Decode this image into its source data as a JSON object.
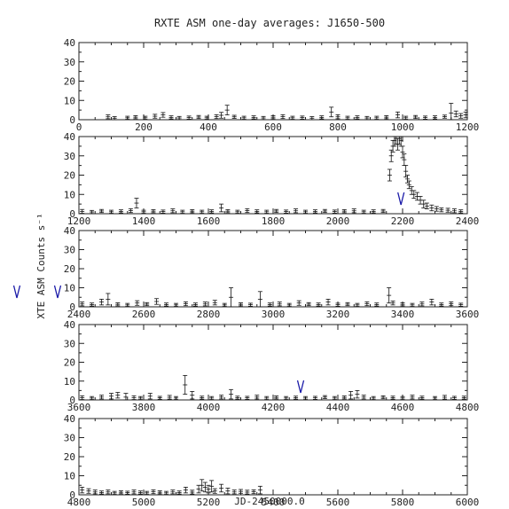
{
  "chart_data": {
    "type": "scatter",
    "title": "RXTE ASM one-day averages: J1650-500",
    "xlabel": "JD-2450000.0",
    "ylabel": "XTE ASM Counts s⁻¹",
    "colors": {
      "points": "#111111",
      "markers": "#1a1aa8"
    },
    "panels": [
      {
        "xlim": [
          0,
          1200
        ],
        "ylim": [
          0,
          40
        ],
        "xticks": [
          0,
          200,
          400,
          600,
          800,
          1000,
          1200
        ],
        "xtick_labels": [
          "0",
          "200",
          "400",
          "600",
          "800",
          "1000",
          "1200"
        ],
        "yticks": [
          0,
          10,
          20,
          30,
          40
        ],
        "ytick_labels": [
          "0",
          "10",
          "20",
          "30",
          "40"
        ],
        "markers": [],
        "points": [
          [
            90,
            1.5,
            1
          ],
          [
            110,
            0.8,
            0.8
          ],
          [
            150,
            1.0,
            0.8
          ],
          [
            175,
            1.3,
            0.8
          ],
          [
            205,
            1.0,
            0.8
          ],
          [
            235,
            1.8,
            1
          ],
          [
            260,
            2.5,
            1.2
          ],
          [
            285,
            1.2,
            0.8
          ],
          [
            310,
            0.9,
            0.8
          ],
          [
            340,
            1.1,
            0.8
          ],
          [
            370,
            1.4,
            0.8
          ],
          [
            395,
            1.0,
            0.8
          ],
          [
            425,
            1.6,
            1
          ],
          [
            440,
            2.3,
            1.5
          ],
          [
            458,
            5.0,
            2.5
          ],
          [
            480,
            1.5,
            0.8
          ],
          [
            510,
            1.0,
            0.8
          ],
          [
            540,
            1.2,
            0.8
          ],
          [
            570,
            0.9,
            0.8
          ],
          [
            600,
            1.3,
            0.8
          ],
          [
            630,
            1.6,
            1
          ],
          [
            660,
            1.0,
            0.8
          ],
          [
            690,
            1.1,
            0.8
          ],
          [
            720,
            0.8,
            0.8
          ],
          [
            750,
            1.2,
            0.8
          ],
          [
            780,
            4.0,
            2.5
          ],
          [
            800,
            1.5,
            1
          ],
          [
            830,
            1.0,
            0.8
          ],
          [
            860,
            1.2,
            0.8
          ],
          [
            890,
            0.9,
            0.8
          ],
          [
            920,
            1.0,
            0.8
          ],
          [
            950,
            1.3,
            0.8
          ],
          [
            985,
            2.5,
            1.5
          ],
          [
            1010,
            1.0,
            0.8
          ],
          [
            1040,
            1.4,
            0.8
          ],
          [
            1070,
            1.1,
            0.8
          ],
          [
            1100,
            1.2,
            0.8
          ],
          [
            1130,
            1.6,
            0.8
          ],
          [
            1150,
            3.5,
            5
          ],
          [
            1165,
            3.0,
            1.5
          ],
          [
            1180,
            2.0,
            1.2
          ],
          [
            1195,
            2.5,
            1.5
          ]
        ]
      },
      {
        "xlim": [
          1200,
          2400
        ],
        "ylim": [
          0,
          40
        ],
        "xticks": [
          1200,
          1400,
          1600,
          1800,
          2000,
          2200,
          2400
        ],
        "xtick_labels": [
          "1200",
          "1400",
          "1600",
          "1800",
          "2000",
          "2200",
          "2400"
        ],
        "yticks": [
          0,
          10,
          20,
          30,
          40
        ],
        "ytick_labels": [
          "0",
          "10",
          "20",
          "30",
          "40"
        ],
        "markers": [
          2195
        ],
        "points": [
          [
            1210,
            1.2,
            1
          ],
          [
            1240,
            0.9,
            0.8
          ],
          [
            1270,
            1.4,
            0.8
          ],
          [
            1300,
            1.0,
            0.8
          ],
          [
            1330,
            1.2,
            0.8
          ],
          [
            1360,
            1.6,
            1
          ],
          [
            1378,
            5.5,
            2.5
          ],
          [
            1400,
            1.0,
            0.8
          ],
          [
            1430,
            1.3,
            0.8
          ],
          [
            1460,
            1.1,
            0.8
          ],
          [
            1490,
            1.5,
            1
          ],
          [
            1520,
            1.0,
            0.8
          ],
          [
            1550,
            1.3,
            0.8
          ],
          [
            1580,
            1.0,
            0.8
          ],
          [
            1610,
            1.2,
            0.8
          ],
          [
            1640,
            3.0,
            2
          ],
          [
            1660,
            1.3,
            0.8
          ],
          [
            1690,
            1.0,
            0.8
          ],
          [
            1720,
            1.6,
            1
          ],
          [
            1750,
            1.2,
            0.8
          ],
          [
            1780,
            1.0,
            0.8
          ],
          [
            1810,
            1.4,
            0.8
          ],
          [
            1840,
            1.1,
            0.8
          ],
          [
            1870,
            1.5,
            1
          ],
          [
            1900,
            1.0,
            0.8
          ],
          [
            1930,
            1.2,
            0.8
          ],
          [
            1960,
            1.4,
            0.8
          ],
          [
            1990,
            1.1,
            0.8
          ],
          [
            2020,
            1.3,
            0.8
          ],
          [
            2050,
            1.5,
            1
          ],
          [
            2080,
            1.0,
            0.8
          ],
          [
            2110,
            1.2,
            0.8
          ],
          [
            2140,
            1.4,
            0.8
          ],
          [
            2160,
            20,
            3
          ],
          [
            2165,
            30,
            3
          ],
          [
            2170,
            35,
            3
          ],
          [
            2175,
            38,
            3
          ],
          [
            2180,
            39,
            3
          ],
          [
            2185,
            36,
            3
          ],
          [
            2190,
            39,
            3
          ],
          [
            2195,
            38,
            3
          ],
          [
            2200,
            32,
            3
          ],
          [
            2205,
            28,
            3
          ],
          [
            2210,
            22,
            3
          ],
          [
            2215,
            18,
            2
          ],
          [
            2220,
            15,
            2
          ],
          [
            2228,
            12,
            2
          ],
          [
            2235,
            10,
            2
          ],
          [
            2245,
            9,
            2
          ],
          [
            2255,
            7,
            2
          ],
          [
            2265,
            5,
            2
          ],
          [
            2275,
            4,
            1.5
          ],
          [
            2290,
            3,
            1.5
          ],
          [
            2305,
            2.5,
            1.2
          ],
          [
            2320,
            2,
            1
          ],
          [
            2340,
            1.8,
            1
          ],
          [
            2360,
            1.5,
            1
          ],
          [
            2380,
            1.2,
            0.8
          ]
        ]
      },
      {
        "xlim": [
          2400,
          3600
        ],
        "ylim": [
          0,
          40
        ],
        "xticks": [
          2400,
          2600,
          2800,
          3000,
          3200,
          3400,
          3600
        ],
        "xtick_labels": [
          "2400",
          "2600",
          "2800",
          "3000",
          "3200",
          "3400",
          "3600"
        ],
        "yticks": [
          0,
          10,
          20,
          30,
          40
        ],
        "ytick_labels": [
          "0",
          "10",
          "20",
          "30",
          "40"
        ],
        "markers": [],
        "points": [
          [
            2410,
            1.5,
            1
          ],
          [
            2440,
            1.2,
            0.8
          ],
          [
            2470,
            2.5,
            1.5
          ],
          [
            2490,
            4.0,
            3
          ],
          [
            2520,
            1.3,
            0.8
          ],
          [
            2550,
            1.0,
            0.8
          ],
          [
            2580,
            2.0,
            1.2
          ],
          [
            2610,
            1.4,
            0.8
          ],
          [
            2640,
            2.8,
            1.5
          ],
          [
            2670,
            1.2,
            0.8
          ],
          [
            2700,
            1.0,
            0.8
          ],
          [
            2730,
            1.6,
            1
          ],
          [
            2760,
            1.2,
            0.8
          ],
          [
            2790,
            1.5,
            1
          ],
          [
            2820,
            2.2,
            1.2
          ],
          [
            2850,
            1.0,
            0.8
          ],
          [
            2870,
            5.0,
            5
          ],
          [
            2900,
            1.3,
            0.8
          ],
          [
            2930,
            1.1,
            0.8
          ],
          [
            2960,
            4.0,
            4
          ],
          [
            2990,
            1.2,
            0.8
          ],
          [
            3020,
            1.5,
            1
          ],
          [
            3050,
            1.0,
            0.8
          ],
          [
            3080,
            2.0,
            1.2
          ],
          [
            3110,
            1.4,
            0.8
          ],
          [
            3140,
            1.2,
            0.8
          ],
          [
            3170,
            2.5,
            1.5
          ],
          [
            3200,
            1.1,
            0.8
          ],
          [
            3230,
            1.4,
            0.8
          ],
          [
            3260,
            1.0,
            0.8
          ],
          [
            3290,
            1.6,
            1
          ],
          [
            3320,
            1.2,
            0.8
          ],
          [
            3358,
            6.0,
            4
          ],
          [
            3370,
            2.0,
            1
          ],
          [
            3400,
            1.3,
            0.8
          ],
          [
            3430,
            1.0,
            0.8
          ],
          [
            3460,
            1.5,
            1
          ],
          [
            3490,
            2.5,
            1.5
          ],
          [
            3520,
            1.2,
            0.8
          ],
          [
            3550,
            1.6,
            1
          ],
          [
            3580,
            1.1,
            0.8
          ]
        ]
      },
      {
        "xlim": [
          3600,
          4800
        ],
        "ylim": [
          0,
          40
        ],
        "xticks": [
          3600,
          3800,
          4000,
          4200,
          4400,
          4600,
          4800
        ],
        "xtick_labels": [
          "3600",
          "3800",
          "4000",
          "4200",
          "4400",
          "4600",
          "4800"
        ],
        "yticks": [
          0,
          10,
          20,
          30,
          40
        ],
        "ytick_labels": [
          "0",
          "10",
          "20",
          "30",
          "40"
        ],
        "markers": [
          4285
        ],
        "points": [
          [
            3610,
            1.2,
            1
          ],
          [
            3640,
            1.0,
            0.8
          ],
          [
            3670,
            1.5,
            1
          ],
          [
            3700,
            2.0,
            1.5
          ],
          [
            3720,
            2.5,
            1.5
          ],
          [
            3745,
            1.5,
            2
          ],
          [
            3770,
            1.2,
            1
          ],
          [
            3790,
            1.0,
            0.8
          ],
          [
            3820,
            2.0,
            1.5
          ],
          [
            3850,
            1.1,
            0.8
          ],
          [
            3880,
            1.4,
            1
          ],
          [
            3900,
            1.0,
            0.8
          ],
          [
            3928,
            8,
            5
          ],
          [
            3950,
            2.5,
            2
          ],
          [
            3980,
            1.2,
            0.8
          ],
          [
            4010,
            1.0,
            0.8
          ],
          [
            4040,
            1.5,
            1
          ],
          [
            4070,
            3,
            2.5
          ],
          [
            4090,
            1.2,
            0.8
          ],
          [
            4120,
            1.1,
            0.8
          ],
          [
            4150,
            1.5,
            1
          ],
          [
            4180,
            1.0,
            0.8
          ],
          [
            4210,
            1.3,
            0.8
          ],
          [
            4240,
            1.0,
            0.8
          ],
          [
            4270,
            1.2,
            0.8
          ],
          [
            4300,
            1.0,
            0.8
          ],
          [
            4330,
            1.1,
            0.8
          ],
          [
            4360,
            1.5,
            0.8
          ],
          [
            4390,
            1.0,
            0.8
          ],
          [
            4420,
            1.3,
            0.8
          ],
          [
            4440,
            2.5,
            2
          ],
          [
            4460,
            3.0,
            2
          ],
          [
            4480,
            1.5,
            1
          ],
          [
            4510,
            1.0,
            0.8
          ],
          [
            4540,
            1.4,
            0.8
          ],
          [
            4570,
            1.2,
            0.8
          ],
          [
            4600,
            1.0,
            0.8
          ],
          [
            4630,
            1.5,
            1
          ],
          [
            4660,
            1.2,
            0.8
          ],
          [
            4700,
            1.0,
            0.8
          ],
          [
            4730,
            1.4,
            1
          ],
          [
            4760,
            1.1,
            0.8
          ],
          [
            4790,
            1.2,
            0.8
          ]
        ]
      },
      {
        "xlim": [
          4800,
          6000
        ],
        "ylim": [
          0,
          40
        ],
        "xticks": [
          4800,
          5000,
          5200,
          5400,
          5600,
          5800,
          6000
        ],
        "xtick_labels": [
          "4800",
          "5000",
          "5200",
          "5400",
          "5600",
          "5800",
          "6000"
        ],
        "yticks": [
          0,
          10,
          20,
          30,
          40
        ],
        "ytick_labels": [
          "0",
          "10",
          "20",
          "30",
          "40"
        ],
        "markers": [],
        "points": [
          [
            4810,
            2.5,
            1.5
          ],
          [
            4830,
            2.0,
            1.2
          ],
          [
            4850,
            1.5,
            1
          ],
          [
            4870,
            1.2,
            0.8
          ],
          [
            4890,
            1.5,
            1
          ],
          [
            4910,
            1.0,
            0.8
          ],
          [
            4930,
            1.3,
            0.8
          ],
          [
            4950,
            1.1,
            0.8
          ],
          [
            4970,
            1.5,
            1
          ],
          [
            4990,
            1.2,
            0.8
          ],
          [
            5010,
            1.0,
            0.8
          ],
          [
            5030,
            1.6,
            1
          ],
          [
            5050,
            1.3,
            0.8
          ],
          [
            5070,
            1.0,
            0.8
          ],
          [
            5090,
            1.5,
            1
          ],
          [
            5110,
            1.2,
            0.8
          ],
          [
            5130,
            2.5,
            1.5
          ],
          [
            5150,
            1.4,
            1
          ],
          [
            5170,
            3.0,
            2
          ],
          [
            5180,
            5,
            3
          ],
          [
            5190,
            4,
            2.5
          ],
          [
            5200,
            3,
            2
          ],
          [
            5210,
            4.5,
            3
          ],
          [
            5220,
            2,
            1.2
          ],
          [
            5240,
            3.5,
            2
          ],
          [
            5260,
            2,
            1.5
          ],
          [
            5280,
            1.5,
            1
          ],
          [
            5300,
            1.8,
            1
          ],
          [
            5320,
            1.4,
            1
          ],
          [
            5340,
            1.6,
            1
          ],
          [
            5360,
            2.5,
            2
          ]
        ]
      }
    ]
  }
}
